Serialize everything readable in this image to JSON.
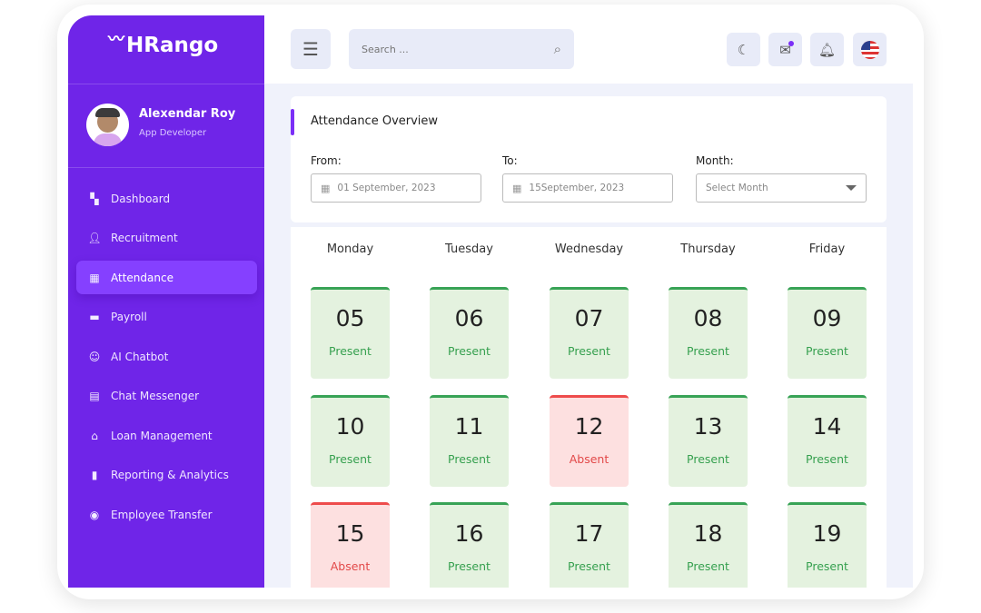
{
  "brand": {
    "name": "HRango"
  },
  "user": {
    "name": "Alexendar  Roy",
    "role": "App Developer"
  },
  "sidebar": {
    "items": [
      {
        "label": "Dashboard",
        "icon": "dashboard-icon",
        "active": false
      },
      {
        "label": "Recruitment",
        "icon": "recruitment-icon",
        "active": false
      },
      {
        "label": "Attendance",
        "icon": "calendar-icon",
        "active": true
      },
      {
        "label": "Payroll",
        "icon": "card-icon",
        "active": false
      },
      {
        "label": "AI Chatbot",
        "icon": "robot-icon",
        "active": false
      },
      {
        "label": "Chat Messenger",
        "icon": "chat-icon",
        "active": false
      },
      {
        "label": "Loan Management",
        "icon": "loan-icon",
        "active": false
      },
      {
        "label": "Reporting & Analytics",
        "icon": "bar-chart-icon",
        "active": false
      },
      {
        "label": "Employee Transfer",
        "icon": "user-circle-icon",
        "active": false
      }
    ]
  },
  "header": {
    "search_placeholder": "Search ...",
    "icons": [
      "moon-icon",
      "mail-icon",
      "bell-icon",
      "us-flag-icon"
    ]
  },
  "overview": {
    "title": "Attendance Overview",
    "from_label": "From:",
    "from_value": "01 September, 2023",
    "to_label": "To:",
    "to_value": "15September, 2023",
    "month_label": "Month:",
    "month_placeholder": "Select Month"
  },
  "calendar": {
    "days": [
      "Monday",
      "Tuesday",
      "Wednesday",
      "Thursday",
      "Friday"
    ],
    "cells": [
      {
        "date": "05",
        "status": "Present"
      },
      {
        "date": "06",
        "status": "Present"
      },
      {
        "date": "07",
        "status": "Present"
      },
      {
        "date": "08",
        "status": "Present"
      },
      {
        "date": "09",
        "status": "Present"
      },
      {
        "date": "10",
        "status": "Present"
      },
      {
        "date": "11",
        "status": "Present"
      },
      {
        "date": "12",
        "status": "Absent"
      },
      {
        "date": "13",
        "status": "Present"
      },
      {
        "date": "14",
        "status": "Present"
      },
      {
        "date": "15",
        "status": "Absent"
      },
      {
        "date": "16",
        "status": "Present"
      },
      {
        "date": "17",
        "status": "Present"
      },
      {
        "date": "18",
        "status": "Present"
      },
      {
        "date": "19",
        "status": "Present"
      }
    ]
  },
  "colors": {
    "sidebar": "#6f25e8",
    "active": "#8540ff",
    "present": "#38a356",
    "absent": "#ee4c4c"
  }
}
